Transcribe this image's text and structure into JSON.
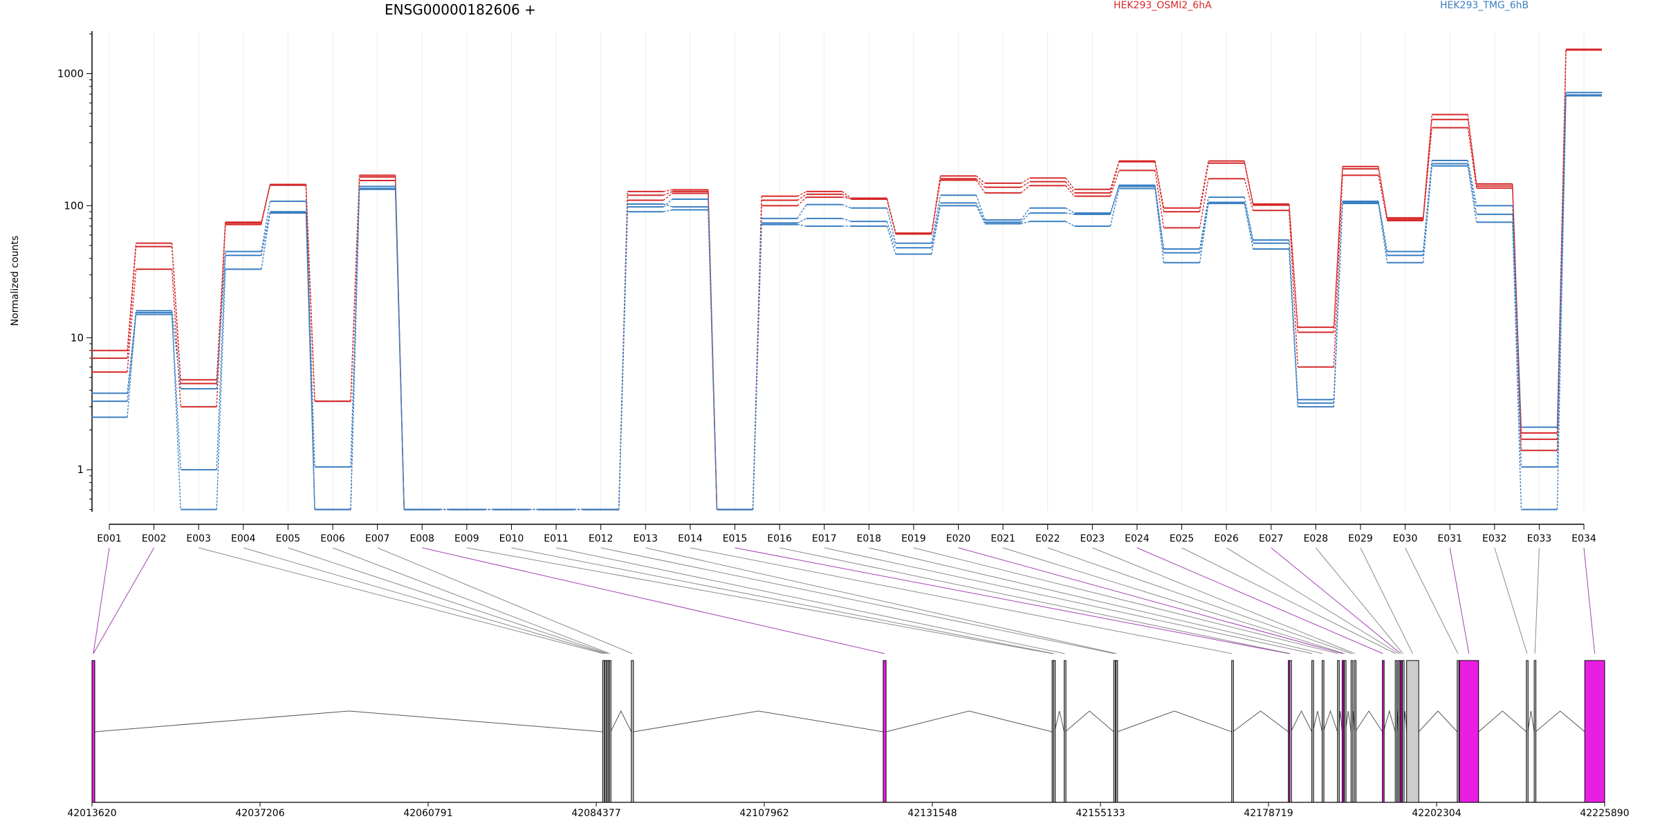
{
  "chart_data": {
    "type": "line",
    "title": "ENSG00000182606 +",
    "ylabel": "Normalized counts",
    "yscale": "log",
    "yticks": [
      "1",
      "10",
      "100",
      "1000"
    ],
    "ylim": [
      0.48,
      2100
    ],
    "grid": "vertical",
    "legend_position": "top",
    "floor_value": 0.5,
    "categories": [
      "E001",
      "E002",
      "E003",
      "E004",
      "E005",
      "E006",
      "E007",
      "E008",
      "E009",
      "E010",
      "E011",
      "E012",
      "E013",
      "E014",
      "E015",
      "E016",
      "E017",
      "E018",
      "E019",
      "E020",
      "E021",
      "E022",
      "E023",
      "E024",
      "E025",
      "E026",
      "E027",
      "E028",
      "E029",
      "E030",
      "E031",
      "E032",
      "E033",
      "E034"
    ],
    "series": [
      {
        "name": "HEK293_OSMI2_6hA",
        "color": "#d62728",
        "replicates": [
          [
            8.0,
            52,
            4.8,
            75,
            145,
            3.3,
            170,
            0.5,
            0.5,
            0.5,
            0.5,
            0.5,
            128,
            132,
            0.5,
            118,
            128,
            114,
            62,
            168,
            148,
            162,
            133,
            218,
            96,
            218,
            103,
            12,
            198,
            81,
            490,
            146,
            1.9,
            1530
          ],
          [
            7.0,
            49,
            4.5,
            72,
            144,
            3.3,
            165,
            0.5,
            0.5,
            0.5,
            0.5,
            0.5,
            120,
            128,
            0.5,
            110,
            122,
            112,
            61,
            160,
            138,
            152,
            125,
            215,
            90,
            210,
            101,
            11,
            190,
            79,
            450,
            141,
            1.7,
            1520
          ],
          [
            5.5,
            33,
            3.0,
            74,
            143,
            0.5,
            155,
            0.5,
            0.5,
            0.5,
            0.5,
            0.5,
            110,
            124,
            0.5,
            100,
            116,
            113,
            62,
            156,
            125,
            142,
            118,
            185,
            68,
            160,
            92,
            6,
            170,
            77,
            390,
            136,
            1.4,
            1510
          ]
        ]
      },
      {
        "name": "HEK293_TMG_6hB",
        "color": "#3a7fc2",
        "replicates": [
          [
            3.8,
            16,
            4.1,
            45,
            108,
            1.05,
            140,
            0.5,
            0.5,
            0.5,
            0.5,
            0.5,
            103,
            98,
            0.5,
            80,
            102,
            96,
            52,
            120,
            78,
            96,
            88,
            143,
            47,
            116,
            55,
            3.4,
            108,
            45,
            220,
            100,
            2.1,
            720
          ],
          [
            3.3,
            15,
            1.0,
            42,
            90,
            0.5,
            135,
            0.5,
            0.5,
            0.5,
            0.5,
            0.5,
            98,
            112,
            0.5,
            74,
            80,
            76,
            48,
            105,
            75,
            88,
            86,
            140,
            44,
            106,
            52,
            3.2,
            106,
            42,
            208,
            86,
            1.05,
            690
          ],
          [
            2.5,
            15.5,
            0.5,
            33,
            88,
            0.5,
            133,
            0.5,
            0.5,
            0.5,
            0.5,
            0.5,
            90,
            93,
            0.5,
            72,
            70,
            70,
            43,
            100,
            73,
            76,
            70,
            135,
            37,
            104,
            47,
            3.0,
            104,
            37,
            200,
            75,
            0.5,
            680
          ]
        ]
      }
    ],
    "gene_model": {
      "coordinate_ticks": [
        "42013620",
        "42037206",
        "42060791",
        "42084377",
        "42107962",
        "42131548",
        "42155133",
        "42178719",
        "42202304",
        "42225890"
      ],
      "genome_start": 42013620,
      "genome_end": 42225890,
      "exons": [
        {
          "id": "E001",
          "start": 42013620,
          "end": 42014000,
          "highlight": true
        },
        {
          "id": "E002",
          "start": 42013620,
          "end": 42014000,
          "highlight": true
        },
        {
          "id": "E003",
          "start": 42085300,
          "end": 42085500,
          "highlight": false
        },
        {
          "id": "E004",
          "start": 42085600,
          "end": 42085800,
          "highlight": false
        },
        {
          "id": "E005",
          "start": 42085900,
          "end": 42086100,
          "highlight": false
        },
        {
          "id": "E006",
          "start": 42086200,
          "end": 42086400,
          "highlight": false
        },
        {
          "id": "E007",
          "start": 42089300,
          "end": 42089600,
          "highlight": false
        },
        {
          "id": "E008",
          "start": 42124650,
          "end": 42125050,
          "highlight": true
        },
        {
          "id": "E009",
          "start": 42148350,
          "end": 42148500,
          "highlight": false
        },
        {
          "id": "E010",
          "start": 42148550,
          "end": 42148700,
          "highlight": false
        },
        {
          "id": "E011",
          "start": 42150050,
          "end": 42150200,
          "highlight": false
        },
        {
          "id": "E012",
          "start": 42157000,
          "end": 42157200,
          "highlight": false
        },
        {
          "id": "E013",
          "start": 42157300,
          "end": 42157500,
          "highlight": false
        },
        {
          "id": "E014",
          "start": 42173550,
          "end": 42173700,
          "highlight": false
        },
        {
          "id": "E015",
          "start": 42181500,
          "end": 42181650,
          "highlight": true
        },
        {
          "id": "E016",
          "start": 42181700,
          "end": 42181850,
          "highlight": false
        },
        {
          "id": "E017",
          "start": 42184800,
          "end": 42184950,
          "highlight": false
        },
        {
          "id": "E018",
          "start": 42186250,
          "end": 42186400,
          "highlight": false
        },
        {
          "id": "E019",
          "start": 42188400,
          "end": 42188550,
          "highlight": false
        },
        {
          "id": "E020",
          "start": 42189050,
          "end": 42189200,
          "highlight": true
        },
        {
          "id": "E021",
          "start": 42189350,
          "end": 42189500,
          "highlight": false
        },
        {
          "id": "E022",
          "start": 42190300,
          "end": 42190450,
          "highlight": false
        },
        {
          "id": "E023",
          "start": 42190750,
          "end": 42190900,
          "highlight": false
        },
        {
          "id": "E024",
          "start": 42194700,
          "end": 42194850,
          "highlight": true
        },
        {
          "id": "E025",
          "start": 42196500,
          "end": 42196650,
          "highlight": false
        },
        {
          "id": "E026",
          "start": 42196900,
          "end": 42197050,
          "highlight": false
        },
        {
          "id": "E027",
          "start": 42197200,
          "end": 42197350,
          "highlight": true
        },
        {
          "id": "E028",
          "start": 42197500,
          "end": 42197650,
          "highlight": false
        },
        {
          "id": "E029",
          "start": 42198100,
          "end": 42199800,
          "highlight": false
        },
        {
          "id": "E030",
          "start": 42205200,
          "end": 42205400,
          "highlight": false
        },
        {
          "id": "E031",
          "start": 42205500,
          "end": 42208200,
          "highlight": true
        },
        {
          "id": "E032",
          "start": 42214900,
          "end": 42215100,
          "highlight": false
        },
        {
          "id": "E033",
          "start": 42216000,
          "end": 42216200,
          "highlight": false
        },
        {
          "id": "E034",
          "start": 42223100,
          "end": 42225890,
          "highlight": true
        }
      ],
      "highlight_color": "#e81fe3",
      "neutral_color": "#cccccc"
    }
  }
}
